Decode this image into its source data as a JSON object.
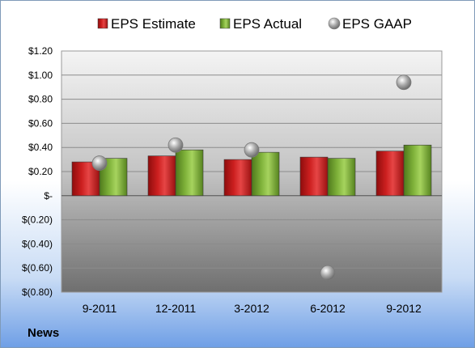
{
  "footer": {
    "label": "News"
  },
  "colors": {
    "estimate": "#cc1f1f",
    "actual": "#7fb23a",
    "gaap": "#a8a8a8"
  },
  "chart_data": {
    "type": "bar",
    "categories": [
      "9-2011",
      "12-2011",
      "3-2012",
      "6-2012",
      "9-2012"
    ],
    "series": [
      {
        "name": "EPS Estimate",
        "kind": "bar",
        "values": [
          0.28,
          0.33,
          0.3,
          0.32,
          0.37
        ]
      },
      {
        "name": "EPS Actual",
        "kind": "bar",
        "values": [
          0.31,
          0.38,
          0.36,
          0.31,
          0.42
        ]
      },
      {
        "name": "EPS GAAP",
        "kind": "scatter",
        "values": [
          0.27,
          0.42,
          0.38,
          -0.64,
          0.94
        ]
      }
    ],
    "yticks": [
      "$1.20",
      "$1.00",
      "$0.80",
      "$0.60",
      "$0.40",
      "$0.20",
      "$-",
      "$(0.20)",
      "$(0.40)",
      "$(0.60)",
      "$(0.80)"
    ],
    "ylim": [
      -0.8,
      1.2
    ],
    "grid": true,
    "legend_position": "top"
  }
}
